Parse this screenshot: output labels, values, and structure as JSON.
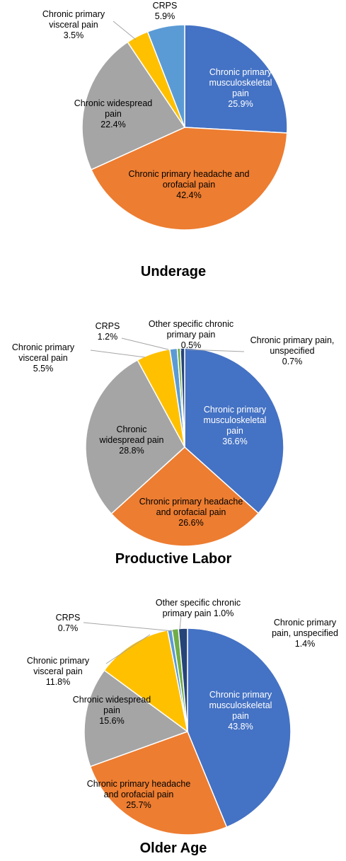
{
  "colors": {
    "musculoskeletal": "#4472C4",
    "headache": "#ED7D31",
    "widespread": "#A5A5A5",
    "visceral": "#FFC000",
    "crps": "#5B9BD5",
    "other_specific": "#70AD47",
    "unspecified": "#264478"
  },
  "chart_data": [
    {
      "type": "pie",
      "title": "Underage",
      "slices": [
        {
          "key": "musculoskeletal",
          "label": [
            "Chronic primary",
            "musculoskeletal",
            "pain"
          ],
          "value_label": "25.9%",
          "value": 25.9
        },
        {
          "key": "headache",
          "label": [
            "Chronic primary headache and",
            "orofacial pain"
          ],
          "value_label": "42.4%",
          "value": 42.4
        },
        {
          "key": "widespread",
          "label": [
            "Chronic widespread",
            "pain"
          ],
          "value_label": "22.4%",
          "value": 22.4
        },
        {
          "key": "visceral",
          "label": [
            "Chronic primary",
            "visceral pain"
          ],
          "value_label": "3.5%",
          "value": 3.5
        },
        {
          "key": "crps",
          "label": [
            "CRPS"
          ],
          "value_label": "5.9%",
          "value": 5.9
        }
      ]
    },
    {
      "type": "pie",
      "title": "Productive Labor",
      "slices": [
        {
          "key": "musculoskeletal",
          "label": [
            "Chronic primary",
            "musculoskeletal",
            "pain"
          ],
          "value_label": "36.6%",
          "value": 36.6
        },
        {
          "key": "headache",
          "label": [
            "Chronic primary headache",
            "and orofacial pain"
          ],
          "value_label": "26.6%",
          "value": 26.6
        },
        {
          "key": "widespread",
          "label": [
            "Chronic",
            "widespread pain"
          ],
          "value_label": "28.8%",
          "value": 28.8
        },
        {
          "key": "visceral",
          "label": [
            "Chronic primary",
            "visceral pain"
          ],
          "value_label": "5.5%",
          "value": 5.5
        },
        {
          "key": "crps",
          "label": [
            "CRPS"
          ],
          "value_label": "1.2%",
          "value": 1.2
        },
        {
          "key": "other_specific",
          "label": [
            "Other specific chronic",
            "primary pain"
          ],
          "value_label": "0.5%",
          "value": 0.5
        },
        {
          "key": "unspecified",
          "label": [
            "Chronic primary pain,",
            "unspecified"
          ],
          "value_label": "0.7%",
          "value": 0.7
        }
      ]
    },
    {
      "type": "pie",
      "title": "Older Age",
      "slices": [
        {
          "key": "musculoskeletal",
          "label": [
            "Chronic primary",
            "musculoskeletal",
            "pain"
          ],
          "value_label": "43.8%",
          "value": 43.8
        },
        {
          "key": "headache",
          "label": [
            "Chronic primary headache",
            "and orofacial pain"
          ],
          "value_label": "25.7%",
          "value": 25.7
        },
        {
          "key": "widespread",
          "label": [
            "Chronic widespread",
            "pain"
          ],
          "value_label": "15.6%",
          "value": 15.6
        },
        {
          "key": "visceral",
          "label": [
            "Chronic primary",
            "visceral pain"
          ],
          "value_label": "11.8%",
          "value": 11.8
        },
        {
          "key": "crps",
          "label": [
            "CRPS"
          ],
          "value_label": "0.7%",
          "value": 0.7
        },
        {
          "key": "other_specific",
          "label": [
            "Other specific chronic",
            "primary pain"
          ],
          "value_label": "1.0%",
          "value": 1.0,
          "inline_value": true
        },
        {
          "key": "unspecified",
          "label": [
            "Chronic primary",
            "pain, unspecified"
          ],
          "value_label": "1.4%",
          "value": 1.4
        }
      ]
    }
  ]
}
